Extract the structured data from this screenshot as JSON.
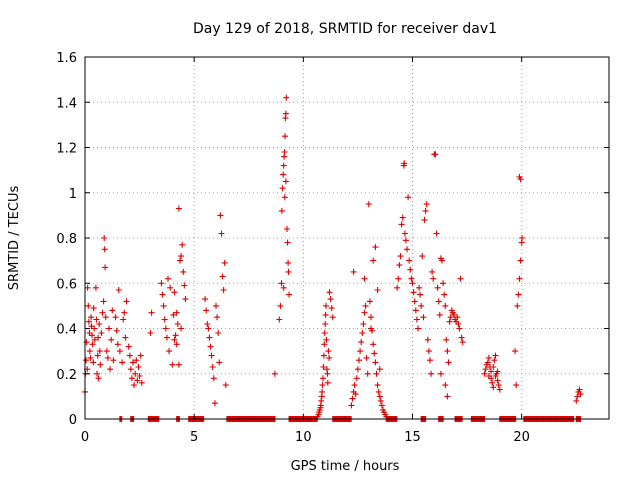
{
  "chart_data": {
    "type": "scatter",
    "title": "Day 129 of 2018, SRMTID for receiver dav1",
    "xlabel": "GPS time / hours",
    "ylabel": "SRMTID / TECUs",
    "xlim": [
      0,
      24
    ],
    "ylim": [
      0,
      1.6
    ],
    "xticks": [
      0,
      5,
      10,
      15,
      20
    ],
    "yticks": [
      0,
      0.2,
      0.4,
      0.6,
      0.8,
      1,
      1.2,
      1.4,
      1.6
    ],
    "ytick_labels": [
      "0",
      "0.2",
      "0.4",
      "0.6",
      "0.8",
      "1",
      "1.2",
      "1.4",
      "1.6"
    ],
    "grid": true,
    "marker": "+",
    "color": "#dd0000",
    "series": [
      {
        "name": "SRMTID",
        "points": [
          [
            0.0,
            0.12
          ],
          [
            0.02,
            0.2
          ],
          [
            0.05,
            0.26
          ],
          [
            0.07,
            0.34
          ],
          [
            0.1,
            0.22
          ],
          [
            0.12,
            0.58
          ],
          [
            0.15,
            0.5
          ],
          [
            0.18,
            0.43
          ],
          [
            0.2,
            0.38
          ],
          [
            0.22,
            0.3
          ],
          [
            0.25,
            0.27
          ],
          [
            0.28,
            0.45
          ],
          [
            0.3,
            0.41
          ],
          [
            0.32,
            0.37
          ],
          [
            0.35,
            0.33
          ],
          [
            0.38,
            0.25
          ],
          [
            0.4,
            0.49
          ],
          [
            0.42,
            0.4
          ],
          [
            0.45,
            0.35
          ],
          [
            0.5,
            0.58
          ],
          [
            0.52,
            0.44
          ],
          [
            0.55,
            0.2
          ],
          [
            0.58,
            0.28
          ],
          [
            0.6,
            0.36
          ],
          [
            0.62,
            0.18
          ],
          [
            0.65,
            0.42
          ],
          [
            0.68,
            0.3
          ],
          [
            0.7,
            0.24
          ],
          [
            0.75,
            0.38
          ],
          [
            0.8,
            0.47
          ],
          [
            0.85,
            0.52
          ],
          [
            0.88,
            0.8
          ],
          [
            0.9,
            0.75
          ],
          [
            0.92,
            0.67
          ],
          [
            0.95,
            0.45
          ],
          [
            1.0,
            0.3
          ],
          [
            1.05,
            0.27
          ],
          [
            1.1,
            0.4
          ],
          [
            1.15,
            0.22
          ],
          [
            1.2,
            0.35
          ],
          [
            1.25,
            0.48
          ],
          [
            1.3,
            0.26
          ],
          [
            1.4,
            0.45
          ],
          [
            1.45,
            0.39
          ],
          [
            1.5,
            0.33
          ],
          [
            1.55,
            0.57
          ],
          [
            1.6,
            0.3
          ],
          [
            1.7,
            0.25
          ],
          [
            1.75,
            0.44
          ],
          [
            1.8,
            0.47
          ],
          [
            1.85,
            0.36
          ],
          [
            1.9,
            0.52
          ],
          [
            2.0,
            0.32
          ],
          [
            2.05,
            0.28
          ],
          [
            2.1,
            0.22
          ],
          [
            2.15,
            0.18
          ],
          [
            2.2,
            0.25
          ],
          [
            2.25,
            0.15
          ],
          [
            2.3,
            0.2
          ],
          [
            2.35,
            0.26
          ],
          [
            2.4,
            0.17
          ],
          [
            2.45,
            0.23
          ],
          [
            2.5,
            0.19
          ],
          [
            2.55,
            0.28
          ],
          [
            2.6,
            0.16
          ],
          [
            3.0,
            0.38
          ],
          [
            3.05,
            0.47
          ],
          [
            3.5,
            0.6
          ],
          [
            3.55,
            0.55
          ],
          [
            3.6,
            0.5
          ],
          [
            3.65,
            0.44
          ],
          [
            3.7,
            0.4
          ],
          [
            3.75,
            0.36
          ],
          [
            3.8,
            0.62
          ],
          [
            3.85,
            0.3
          ],
          [
            3.9,
            0.58
          ],
          [
            4.0,
            0.24
          ],
          [
            4.05,
            0.46
          ],
          [
            4.1,
            0.56
          ],
          [
            4.15,
            0.37
          ],
          [
            4.2,
            0.33
          ],
          [
            4.25,
            0.42
          ],
          [
            4.3,
            0.93
          ],
          [
            4.35,
            0.7
          ],
          [
            4.4,
            0.72
          ],
          [
            4.45,
            0.77
          ],
          [
            4.5,
            0.65
          ],
          [
            4.55,
            0.59
          ],
          [
            4.6,
            0.53
          ],
          [
            4.3,
            0.24
          ],
          [
            4.2,
            0.47
          ],
          [
            4.1,
            0.35
          ],
          [
            4.4,
            0.4
          ],
          [
            5.5,
            0.53
          ],
          [
            5.55,
            0.48
          ],
          [
            5.6,
            0.42
          ],
          [
            5.65,
            0.4
          ],
          [
            5.7,
            0.36
          ],
          [
            5.75,
            0.32
          ],
          [
            5.8,
            0.28
          ],
          [
            5.85,
            0.23
          ],
          [
            5.9,
            0.18
          ],
          [
            5.95,
            0.07
          ],
          [
            6.0,
            0.5
          ],
          [
            6.05,
            0.45
          ],
          [
            6.1,
            0.38
          ],
          [
            6.15,
            0.25
          ],
          [
            6.2,
            0.9
          ],
          [
            6.25,
            0.82
          ],
          [
            6.3,
            0.63
          ],
          [
            6.35,
            0.57
          ],
          [
            6.4,
            0.69
          ],
          [
            6.45,
            0.15
          ],
          [
            8.7,
            0.2
          ],
          [
            8.9,
            0.44
          ],
          [
            8.95,
            0.5
          ],
          [
            9.0,
            0.6
          ],
          [
            9.02,
            0.92
          ],
          [
            9.05,
            1.02
          ],
          [
            9.08,
            1.08
          ],
          [
            9.1,
            1.12
          ],
          [
            9.12,
            1.16
          ],
          [
            9.14,
            1.18
          ],
          [
            9.16,
            1.25
          ],
          [
            9.18,
            1.33
          ],
          [
            9.2,
            1.35
          ],
          [
            9.22,
            1.42
          ],
          [
            9.25,
            0.84
          ],
          [
            9.28,
            0.78
          ],
          [
            9.3,
            0.69
          ],
          [
            9.32,
            0.65
          ],
          [
            9.35,
            0.55
          ],
          [
            9.1,
            0.58
          ],
          [
            9.15,
            0.98
          ],
          [
            9.2,
            1.05
          ],
          [
            10.65,
            0.01
          ],
          [
            10.7,
            0.02
          ],
          [
            10.72,
            0.03
          ],
          [
            10.75,
            0.04
          ],
          [
            10.78,
            0.05
          ],
          [
            10.8,
            0.06
          ],
          [
            10.82,
            0.08
          ],
          [
            10.84,
            0.1
          ],
          [
            10.86,
            0.12
          ],
          [
            10.88,
            0.15
          ],
          [
            10.9,
            0.18
          ],
          [
            10.92,
            0.23
          ],
          [
            10.94,
            0.28
          ],
          [
            10.96,
            0.33
          ],
          [
            10.98,
            0.38
          ],
          [
            11.0,
            0.42
          ],
          [
            11.02,
            0.46
          ],
          [
            11.04,
            0.5
          ],
          [
            11.06,
            0.35
          ],
          [
            11.08,
            0.22
          ],
          [
            11.1,
            0.2
          ],
          [
            11.12,
            0.16
          ],
          [
            11.15,
            0.3
          ],
          [
            11.18,
            0.27
          ],
          [
            11.2,
            0.56
          ],
          [
            11.25,
            0.53
          ],
          [
            11.3,
            0.49
          ],
          [
            11.35,
            0.45
          ],
          [
            12.2,
            0.06
          ],
          [
            12.25,
            0.09
          ],
          [
            12.3,
            0.12
          ],
          [
            12.35,
            0.15
          ],
          [
            12.4,
            0.11
          ],
          [
            12.45,
            0.18
          ],
          [
            12.5,
            0.22
          ],
          [
            12.55,
            0.26
          ],
          [
            12.6,
            0.3
          ],
          [
            12.65,
            0.34
          ],
          [
            12.7,
            0.38
          ],
          [
            12.75,
            0.42
          ],
          [
            12.8,
            0.47
          ],
          [
            12.85,
            0.5
          ],
          [
            12.9,
            0.27
          ],
          [
            12.95,
            0.2
          ],
          [
            13.0,
            0.95
          ],
          [
            13.05,
            0.52
          ],
          [
            13.1,
            0.45
          ],
          [
            13.15,
            0.39
          ],
          [
            13.2,
            0.33
          ],
          [
            13.25,
            0.29
          ],
          [
            13.3,
            0.25
          ],
          [
            13.35,
            0.2
          ],
          [
            13.4,
            0.15
          ],
          [
            13.45,
            0.12
          ],
          [
            13.5,
            0.1
          ],
          [
            13.55,
            0.08
          ],
          [
            13.6,
            0.06
          ],
          [
            13.65,
            0.04
          ],
          [
            13.7,
            0.03
          ],
          [
            13.75,
            0.02
          ],
          [
            13.8,
            0.01
          ],
          [
            12.3,
            0.65
          ],
          [
            12.8,
            0.62
          ],
          [
            13.2,
            0.7
          ],
          [
            13.3,
            0.76
          ],
          [
            13.4,
            0.57
          ],
          [
            13.5,
            0.22
          ],
          [
            13.1,
            0.4
          ],
          [
            14.3,
            0.58
          ],
          [
            14.35,
            0.62
          ],
          [
            14.4,
            0.68
          ],
          [
            14.45,
            0.72
          ],
          [
            14.5,
            0.86
          ],
          [
            14.55,
            0.89
          ],
          [
            14.6,
            1.12
          ],
          [
            14.62,
            1.13
          ],
          [
            14.65,
            0.82
          ],
          [
            14.7,
            0.79
          ],
          [
            14.75,
            0.75
          ],
          [
            14.8,
            0.98
          ],
          [
            14.85,
            0.7
          ],
          [
            14.9,
            0.66
          ],
          [
            14.95,
            0.62
          ],
          [
            15.0,
            0.6
          ],
          [
            15.05,
            0.56
          ],
          [
            15.1,
            0.52
          ],
          [
            15.15,
            0.48
          ],
          [
            15.2,
            0.44
          ],
          [
            15.25,
            0.4
          ],
          [
            15.3,
            0.58
          ],
          [
            15.35,
            0.55
          ],
          [
            15.4,
            0.5
          ],
          [
            15.45,
            0.72
          ],
          [
            15.5,
            0.45
          ],
          [
            15.55,
            0.88
          ],
          [
            15.6,
            0.92
          ],
          [
            15.65,
            0.95
          ],
          [
            15.7,
            0.35
          ],
          [
            15.75,
            0.3
          ],
          [
            15.8,
            0.26
          ],
          [
            15.85,
            0.2
          ],
          [
            15.9,
            0.65
          ],
          [
            15.95,
            0.62
          ],
          [
            16.0,
            1.17
          ],
          [
            16.05,
            1.17
          ],
          [
            16.1,
            0.82
          ],
          [
            16.15,
            0.58
          ],
          [
            16.2,
            0.52
          ],
          [
            16.25,
            0.46
          ],
          [
            16.3,
            0.71
          ],
          [
            16.35,
            0.7
          ],
          [
            16.4,
            0.6
          ],
          [
            16.45,
            0.55
          ],
          [
            16.5,
            0.5
          ],
          [
            16.55,
            0.35
          ],
          [
            16.6,
            0.3
          ],
          [
            16.65,
            0.25
          ],
          [
            16.7,
            0.43
          ],
          [
            16.75,
            0.45
          ],
          [
            16.8,
            0.48
          ],
          [
            16.85,
            0.47
          ],
          [
            16.9,
            0.46
          ],
          [
            16.95,
            0.44
          ],
          [
            17.0,
            0.43
          ],
          [
            17.05,
            0.45
          ],
          [
            17.1,
            0.42
          ],
          [
            17.15,
            0.4
          ],
          [
            17.2,
            0.62
          ],
          [
            17.25,
            0.36
          ],
          [
            17.3,
            0.34
          ],
          [
            16.5,
            0.15
          ],
          [
            16.6,
            0.1
          ],
          [
            16.3,
            0.2
          ],
          [
            18.3,
            0.2
          ],
          [
            18.35,
            0.22
          ],
          [
            18.4,
            0.24
          ],
          [
            18.45,
            0.25
          ],
          [
            18.5,
            0.27
          ],
          [
            18.55,
            0.23
          ],
          [
            18.6,
            0.18
          ],
          [
            18.65,
            0.16
          ],
          [
            18.7,
            0.14
          ],
          [
            18.75,
            0.26
          ],
          [
            18.8,
            0.28
          ],
          [
            18.85,
            0.2
          ],
          [
            18.9,
            0.17
          ],
          [
            18.95,
            0.15
          ],
          [
            19.0,
            0.13
          ],
          [
            18.5,
            0.19
          ],
          [
            18.6,
            0.21
          ],
          [
            18.7,
            0.23
          ],
          [
            18.8,
            0.19
          ],
          [
            18.9,
            0.21
          ],
          [
            19.7,
            0.3
          ],
          [
            19.75,
            0.15
          ],
          [
            19.8,
            0.5
          ],
          [
            19.85,
            0.55
          ],
          [
            19.9,
            0.62
          ],
          [
            19.95,
            0.7
          ],
          [
            20.0,
            0.78
          ],
          [
            20.02,
            0.8
          ],
          [
            19.9,
            1.07
          ],
          [
            19.95,
            1.06
          ],
          [
            22.5,
            0.08
          ],
          [
            22.55,
            0.1
          ],
          [
            22.6,
            0.12
          ],
          [
            22.65,
            0.13
          ],
          [
            22.7,
            0.11
          ]
        ],
        "zero_intervals": [
          [
            1.6,
            1.7
          ],
          [
            2.1,
            2.25
          ],
          [
            2.9,
            3.4
          ],
          [
            4.2,
            4.35
          ],
          [
            4.75,
            5.45
          ],
          [
            6.5,
            8.7
          ],
          [
            9.35,
            10.65
          ],
          [
            11.35,
            12.2
          ],
          [
            13.8,
            14.3
          ],
          [
            15.4,
            15.6
          ],
          [
            16.2,
            16.4
          ],
          [
            16.95,
            17.3
          ],
          [
            17.7,
            18.3
          ],
          [
            19.0,
            19.75
          ],
          [
            20.1,
            22.4
          ],
          [
            22.5,
            22.7
          ]
        ]
      }
    ]
  }
}
